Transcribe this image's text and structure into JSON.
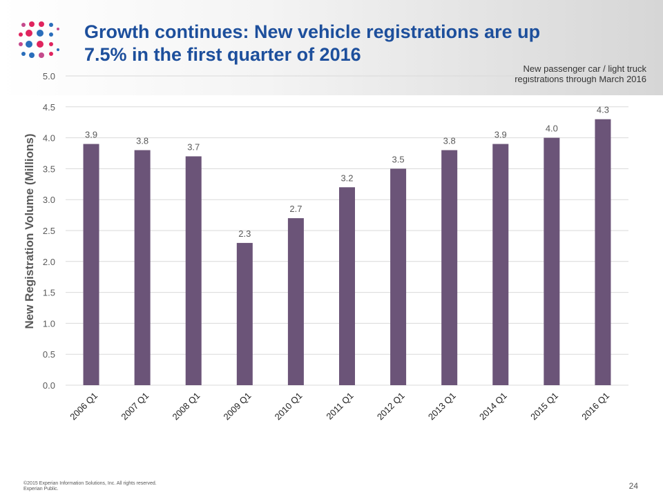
{
  "slide": {
    "title_line1": "Growth continues: New vehicle registrations are up",
    "title_line2": "7.5% in the first quarter of 2016",
    "subtitle_line1": "New passenger car / light truck",
    "subtitle_line2": "registrations through March 2016",
    "copyright": "©2015 Experian Information Solutions, Inc. All rights reserved.",
    "classification": "Experian Public.",
    "page_number": "24",
    "logo_icon": "experian-dot-logo-icon"
  },
  "colors": {
    "title": "#1d4f9c",
    "bar": "#6b5478",
    "grid": "#d9d9d9",
    "axis_text": "#595959",
    "logo_red": "#e0245e",
    "logo_blue": "#2a6ebb",
    "logo_pink": "#c44a8c"
  },
  "chart_data": {
    "type": "bar",
    "categories": [
      "2006 Q1",
      "2007 Q1",
      "2008 Q1",
      "2009 Q1",
      "2010 Q1",
      "2011 Q1",
      "2012 Q1",
      "2013 Q1",
      "2014 Q1",
      "2015 Q1",
      "2016 Q1"
    ],
    "values": [
      3.9,
      3.8,
      3.7,
      2.3,
      2.7,
      3.2,
      3.5,
      3.8,
      3.9,
      4.0,
      4.3
    ],
    "data_labels": [
      "3.9",
      "3.8",
      "3.7",
      "2.3",
      "2.7",
      "3.2",
      "3.5",
      "3.8",
      "3.9",
      "4.0",
      "4.3"
    ],
    "ylabel": "New Registration Volume (Millions)",
    "xlabel": "",
    "ylim": [
      0,
      5
    ],
    "yticks": [
      "0.0",
      "0.5",
      "1.0",
      "1.5",
      "2.0",
      "2.5",
      "3.0",
      "3.5",
      "4.0",
      "4.5",
      "5.0"
    ],
    "grid": true,
    "legend": "none"
  }
}
